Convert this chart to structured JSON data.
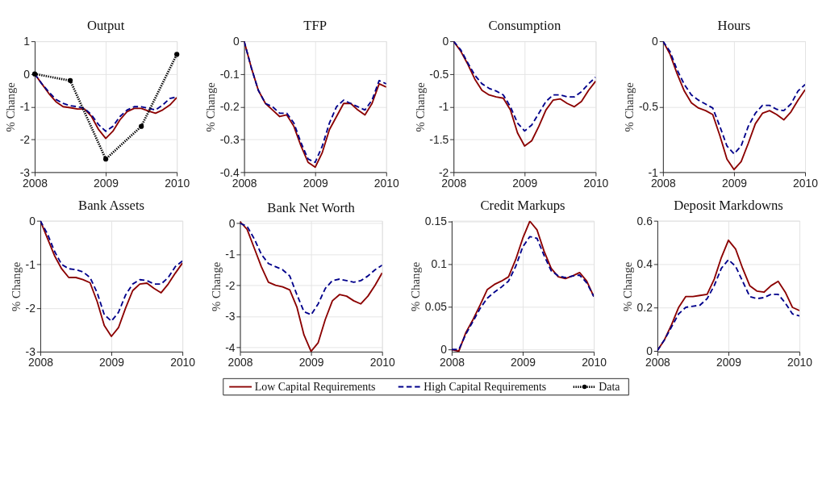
{
  "chart_data": [
    {
      "type": "line",
      "title": "Output",
      "ylabel": "% Change",
      "x": [
        2008,
        2008.1,
        2008.2,
        2008.3,
        2008.4,
        2008.5,
        2008.6,
        2008.7,
        2008.8,
        2008.9,
        2009,
        2009.1,
        2009.2,
        2009.3,
        2009.4,
        2009.5,
        2009.6,
        2009.7,
        2009.8,
        2009.9,
        2010
      ],
      "xlim": [
        2008,
        2010
      ],
      "xticks": [
        2008,
        2009,
        2010
      ],
      "ylim": [
        -3,
        1
      ],
      "yticks": [
        1,
        0,
        -1,
        -2,
        -3
      ],
      "grid": true,
      "legend": "bottom",
      "series": [
        {
          "name": "Low Capital Requirements",
          "color": "#8b0000",
          "line_style": "solid",
          "values": [
            0,
            -0.3,
            -0.6,
            -0.85,
            -1.0,
            -1.03,
            -1.07,
            -1.07,
            -1.3,
            -1.7,
            -1.97,
            -1.75,
            -1.4,
            -1.15,
            -1.05,
            -1.05,
            -1.13,
            -1.2,
            -1.1,
            -0.95,
            -0.72
          ]
        },
        {
          "name": "High Capital Requirements",
          "color": "#00008b",
          "line_style": "dashed",
          "values": [
            0,
            -0.3,
            -0.55,
            -0.78,
            -0.9,
            -0.97,
            -1.0,
            -1.05,
            -1.25,
            -1.55,
            -1.75,
            -1.6,
            -1.3,
            -1.1,
            -1.0,
            -1.0,
            -1.05,
            -1.1,
            -0.95,
            -0.75,
            -0.7
          ]
        },
        {
          "name": "Data",
          "color": "#000000",
          "line_style": "dotted",
          "marker": "circle",
          "x": [
            2008,
            2008.5,
            2009,
            2009.5,
            2010
          ],
          "values": [
            0,
            -0.2,
            -2.6,
            -1.6,
            0.6
          ]
        }
      ]
    },
    {
      "type": "line",
      "title": "TFP",
      "ylabel": "% Change",
      "x": [
        2008,
        2008.1,
        2008.2,
        2008.3,
        2008.4,
        2008.5,
        2008.6,
        2008.7,
        2008.8,
        2008.9,
        2009,
        2009.1,
        2009.2,
        2009.3,
        2009.4,
        2009.5,
        2009.6,
        2009.7,
        2009.8,
        2009.9,
        2010
      ],
      "xlim": [
        2008,
        2010
      ],
      "xticks": [
        2008,
        2009,
        2010
      ],
      "ylim": [
        -0.4,
        0
      ],
      "yticks": [
        0,
        -0.1,
        -0.2,
        -0.3,
        -0.4
      ],
      "grid": true,
      "series": [
        {
          "color": "#8b0000",
          "line_style": "solid",
          "values": [
            0,
            -0.08,
            -0.15,
            -0.19,
            -0.21,
            -0.23,
            -0.225,
            -0.26,
            -0.32,
            -0.37,
            -0.385,
            -0.34,
            -0.27,
            -0.23,
            -0.19,
            -0.19,
            -0.21,
            -0.225,
            -0.19,
            -0.13,
            -0.14
          ]
        },
        {
          "color": "#00008b",
          "line_style": "dashed",
          "values": [
            0,
            -0.08,
            -0.15,
            -0.19,
            -0.2,
            -0.22,
            -0.22,
            -0.25,
            -0.31,
            -0.36,
            -0.37,
            -0.32,
            -0.25,
            -0.2,
            -0.18,
            -0.19,
            -0.2,
            -0.21,
            -0.18,
            -0.12,
            -0.13
          ]
        }
      ]
    },
    {
      "type": "line",
      "title": "Consumption",
      "ylabel": "% Change",
      "x": [
        2008,
        2008.1,
        2008.2,
        2008.3,
        2008.4,
        2008.5,
        2008.6,
        2008.7,
        2008.8,
        2008.9,
        2009,
        2009.1,
        2009.2,
        2009.3,
        2009.4,
        2009.5,
        2009.6,
        2009.7,
        2009.8,
        2009.9,
        2010
      ],
      "xlim": [
        2008,
        2010
      ],
      "xticks": [
        2008,
        2009,
        2010
      ],
      "ylim": [
        -2,
        0
      ],
      "yticks": [
        0,
        -0.5,
        -1,
        -1.5,
        -2
      ],
      "grid": true,
      "series": [
        {
          "color": "#8b0000",
          "line_style": "solid",
          "values": [
            0,
            -0.15,
            -0.35,
            -0.58,
            -0.75,
            -0.82,
            -0.85,
            -0.87,
            -1.05,
            -1.4,
            -1.6,
            -1.52,
            -1.3,
            -1.05,
            -0.9,
            -0.88,
            -0.95,
            -1.0,
            -0.92,
            -0.75,
            -0.61
          ]
        },
        {
          "color": "#00008b",
          "line_style": "dashed",
          "values": [
            0,
            -0.13,
            -0.33,
            -0.52,
            -0.65,
            -0.72,
            -0.76,
            -0.82,
            -1.0,
            -1.25,
            -1.37,
            -1.28,
            -1.1,
            -0.92,
            -0.82,
            -0.82,
            -0.85,
            -0.85,
            -0.77,
            -0.65,
            -0.55
          ]
        }
      ]
    },
    {
      "type": "line",
      "title": "Hours",
      "ylabel": "% Change",
      "x": [
        2008,
        2008.1,
        2008.2,
        2008.3,
        2008.4,
        2008.5,
        2008.6,
        2008.7,
        2008.8,
        2008.9,
        2009,
        2009.1,
        2009.2,
        2009.3,
        2009.4,
        2009.5,
        2009.6,
        2009.7,
        2009.8,
        2009.9,
        2010
      ],
      "xlim": [
        2008,
        2010
      ],
      "xticks": [
        2008,
        2009,
        2010
      ],
      "ylim": [
        -1,
        0
      ],
      "yticks": [
        0,
        -0.5,
        -1
      ],
      "grid": true,
      "series": [
        {
          "color": "#8b0000",
          "line_style": "solid",
          "values": [
            0,
            -0.1,
            -0.25,
            -0.38,
            -0.47,
            -0.51,
            -0.53,
            -0.56,
            -0.72,
            -0.9,
            -0.98,
            -0.92,
            -0.78,
            -0.63,
            -0.55,
            -0.53,
            -0.56,
            -0.6,
            -0.54,
            -0.45,
            -0.37
          ]
        },
        {
          "color": "#00008b",
          "line_style": "dashed",
          "values": [
            0,
            -0.08,
            -0.22,
            -0.33,
            -0.41,
            -0.45,
            -0.48,
            -0.51,
            -0.65,
            -0.8,
            -0.86,
            -0.8,
            -0.65,
            -0.55,
            -0.49,
            -0.49,
            -0.52,
            -0.53,
            -0.48,
            -0.38,
            -0.33
          ]
        }
      ]
    },
    {
      "type": "line",
      "title": "Bank Assets",
      "ylabel": "% Change",
      "x": [
        2008,
        2008.1,
        2008.2,
        2008.3,
        2008.4,
        2008.5,
        2008.6,
        2008.7,
        2008.8,
        2008.9,
        2009,
        2009.1,
        2009.2,
        2009.3,
        2009.4,
        2009.5,
        2009.6,
        2009.7,
        2009.8,
        2009.9,
        2010
      ],
      "xlim": [
        2008,
        2010
      ],
      "xticks": [
        2008,
        2009,
        2010
      ],
      "ylim": [
        -3,
        0
      ],
      "yticks": [
        0,
        -1,
        -2,
        -3
      ],
      "grid": true,
      "series": [
        {
          "color": "#8b0000",
          "line_style": "solid",
          "values": [
            0,
            -0.4,
            -0.8,
            -1.1,
            -1.3,
            -1.3,
            -1.35,
            -1.42,
            -1.85,
            -2.4,
            -2.65,
            -2.45,
            -2.0,
            -1.6,
            -1.45,
            -1.43,
            -1.55,
            -1.65,
            -1.45,
            -1.2,
            -0.97
          ]
        },
        {
          "color": "#00008b",
          "line_style": "dashed",
          "values": [
            0,
            -0.3,
            -0.7,
            -1.0,
            -1.1,
            -1.12,
            -1.17,
            -1.3,
            -1.65,
            -2.15,
            -2.3,
            -2.1,
            -1.7,
            -1.45,
            -1.35,
            -1.37,
            -1.45,
            -1.45,
            -1.3,
            -1.05,
            -0.92
          ]
        }
      ]
    },
    {
      "type": "line",
      "title": "Bank Net Worth",
      "ylabel": "% Change",
      "x": [
        2008,
        2008.1,
        2008.2,
        2008.3,
        2008.4,
        2008.5,
        2008.6,
        2008.7,
        2008.8,
        2008.9,
        2009,
        2009.1,
        2009.2,
        2009.3,
        2009.4,
        2009.5,
        2009.6,
        2009.7,
        2009.8,
        2009.9,
        2010
      ],
      "xlim": [
        2008,
        2010
      ],
      "xticks": [
        2008,
        2009,
        2010
      ],
      "ylim": [
        -4.14,
        0.08
      ],
      "yticks": [
        0,
        -1,
        -2,
        -3,
        -4
      ],
      "grid": true,
      "series": [
        {
          "color": "#8b0000",
          "line_style": "solid",
          "values": [
            0.05,
            -0.2,
            -0.8,
            -1.4,
            -1.9,
            -2.0,
            -2.05,
            -2.15,
            -2.7,
            -3.6,
            -4.13,
            -3.85,
            -3.1,
            -2.5,
            -2.3,
            -2.35,
            -2.5,
            -2.6,
            -2.35,
            -2.0,
            -1.6
          ]
        },
        {
          "color": "#00008b",
          "line_style": "dashed",
          "values": [
            0,
            -0.1,
            -0.5,
            -1.0,
            -1.3,
            -1.4,
            -1.5,
            -1.7,
            -2.3,
            -2.85,
            -2.95,
            -2.6,
            -2.1,
            -1.85,
            -1.8,
            -1.85,
            -1.9,
            -1.85,
            -1.7,
            -1.5,
            -1.35
          ]
        }
      ]
    },
    {
      "type": "line",
      "title": "Credit Markups",
      "ylabel": "% Change",
      "x": [
        2008,
        2008.1,
        2008.2,
        2008.3,
        2008.4,
        2008.5,
        2008.6,
        2008.7,
        2008.8,
        2008.9,
        2009,
        2009.1,
        2009.2,
        2009.3,
        2009.4,
        2009.5,
        2009.6,
        2009.7,
        2009.8,
        2009.9,
        2010
      ],
      "xlim": [
        2008,
        2010
      ],
      "xticks": [
        2008,
        2009,
        2010
      ],
      "ylim": [
        -0.0025,
        0.1505
      ],
      "yticks": [
        0,
        0.05,
        0.1,
        0.15
      ],
      "grid": true,
      "series": [
        {
          "color": "#8b0000",
          "line_style": "solid",
          "values": [
            0,
            -0.002,
            0.02,
            0.035,
            0.052,
            0.07,
            0.076,
            0.08,
            0.085,
            0.105,
            0.13,
            0.15,
            0.14,
            0.115,
            0.095,
            0.085,
            0.083,
            0.086,
            0.09,
            0.08,
            0.062
          ]
        },
        {
          "color": "#00008b",
          "line_style": "dashed",
          "values": [
            0,
            0,
            0.018,
            0.033,
            0.048,
            0.06,
            0.067,
            0.073,
            0.08,
            0.097,
            0.12,
            0.132,
            0.13,
            0.11,
            0.092,
            0.086,
            0.084,
            0.086,
            0.087,
            0.078,
            0.062
          ]
        }
      ]
    },
    {
      "type": "line",
      "title": "Deposit Markdowns",
      "ylabel": "% Change",
      "x": [
        2008,
        2008.1,
        2008.2,
        2008.3,
        2008.4,
        2008.5,
        2008.6,
        2008.7,
        2008.8,
        2008.9,
        2009,
        2009.1,
        2009.2,
        2009.3,
        2009.4,
        2009.5,
        2009.6,
        2009.7,
        2009.8,
        2009.9,
        2010
      ],
      "xlim": [
        2008,
        2010
      ],
      "xticks": [
        2008,
        2009,
        2010
      ],
      "ylim": [
        -0.005,
        0.6
      ],
      "yticks": [
        0,
        0.2,
        0.4,
        0.6
      ],
      "grid": true,
      "series": [
        {
          "color": "#8b0000",
          "line_style": "solid",
          "values": [
            0,
            0.05,
            0.12,
            0.2,
            0.25,
            0.25,
            0.255,
            0.26,
            0.33,
            0.43,
            0.51,
            0.47,
            0.38,
            0.3,
            0.275,
            0.27,
            0.3,
            0.32,
            0.27,
            0.2,
            0.185
          ]
        },
        {
          "color": "#00008b",
          "line_style": "dashed",
          "values": [
            0,
            0.05,
            0.11,
            0.17,
            0.2,
            0.205,
            0.21,
            0.24,
            0.3,
            0.38,
            0.42,
            0.39,
            0.32,
            0.25,
            0.24,
            0.245,
            0.26,
            0.26,
            0.22,
            0.17,
            0.16
          ]
        }
      ]
    }
  ]
}
